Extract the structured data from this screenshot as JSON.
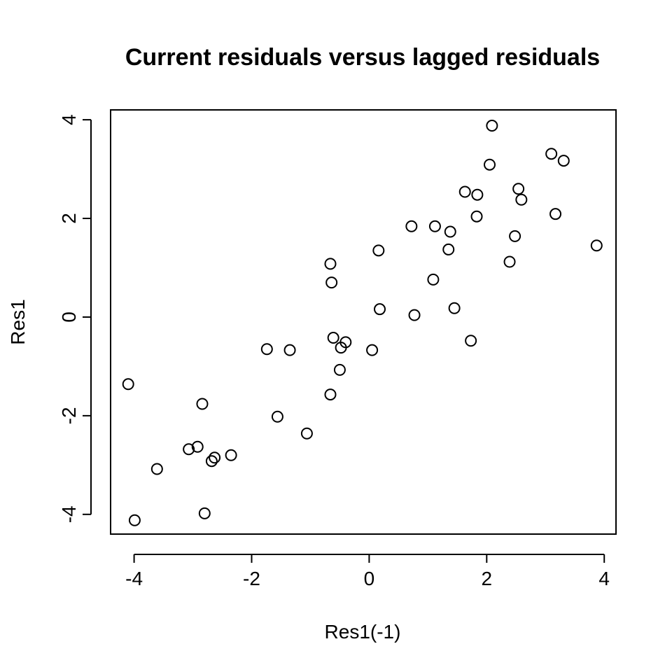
{
  "chart_data": {
    "type": "scatter",
    "title": "Current residuals versus lagged residuals",
    "xlabel": "Res1(-1)",
    "ylabel": "Res1",
    "xlim": [
      -4.4,
      4.2
    ],
    "ylim": [
      -4.4,
      4.2
    ],
    "xticks": [
      -4,
      -2,
      0,
      2,
      4
    ],
    "yticks": [
      -4,
      -2,
      0,
      2,
      4
    ],
    "grid": false,
    "points": [
      [
        -4.1,
        -1.36
      ],
      [
        -3.99,
        -4.12
      ],
      [
        -3.61,
        -3.08
      ],
      [
        -3.07,
        -2.68
      ],
      [
        -2.92,
        -2.63
      ],
      [
        -2.84,
        -1.76
      ],
      [
        -2.8,
        -3.98
      ],
      [
        -2.68,
        -2.92
      ],
      [
        -2.63,
        -2.85
      ],
      [
        -2.35,
        -2.8
      ],
      [
        -1.74,
        -0.65
      ],
      [
        -1.56,
        -2.02
      ],
      [
        -1.35,
        -0.67
      ],
      [
        -1.06,
        -2.36
      ],
      [
        -0.66,
        1.08
      ],
      [
        -0.64,
        0.7
      ],
      [
        -0.66,
        -1.57
      ],
      [
        -0.61,
        -0.42
      ],
      [
        -0.5,
        -1.07
      ],
      [
        -0.48,
        -0.62
      ],
      [
        -0.4,
        -0.51
      ],
      [
        0.05,
        -0.67
      ],
      [
        0.16,
        1.35
      ],
      [
        0.18,
        0.16
      ],
      [
        0.72,
        1.84
      ],
      [
        0.77,
        0.04
      ],
      [
        1.09,
        0.76
      ],
      [
        1.12,
        1.84
      ],
      [
        1.35,
        1.37
      ],
      [
        1.38,
        1.73
      ],
      [
        1.45,
        0.18
      ],
      [
        1.63,
        2.54
      ],
      [
        1.73,
        -0.48
      ],
      [
        1.83,
        2.04
      ],
      [
        1.84,
        2.48
      ],
      [
        2.05,
        3.09
      ],
      [
        2.09,
        3.88
      ],
      [
        2.39,
        1.12
      ],
      [
        2.48,
        1.64
      ],
      [
        2.54,
        2.6
      ],
      [
        2.59,
        2.38
      ],
      [
        3.1,
        3.31
      ],
      [
        3.17,
        2.09
      ],
      [
        3.31,
        3.17
      ],
      [
        3.87,
        1.45
      ]
    ]
  }
}
